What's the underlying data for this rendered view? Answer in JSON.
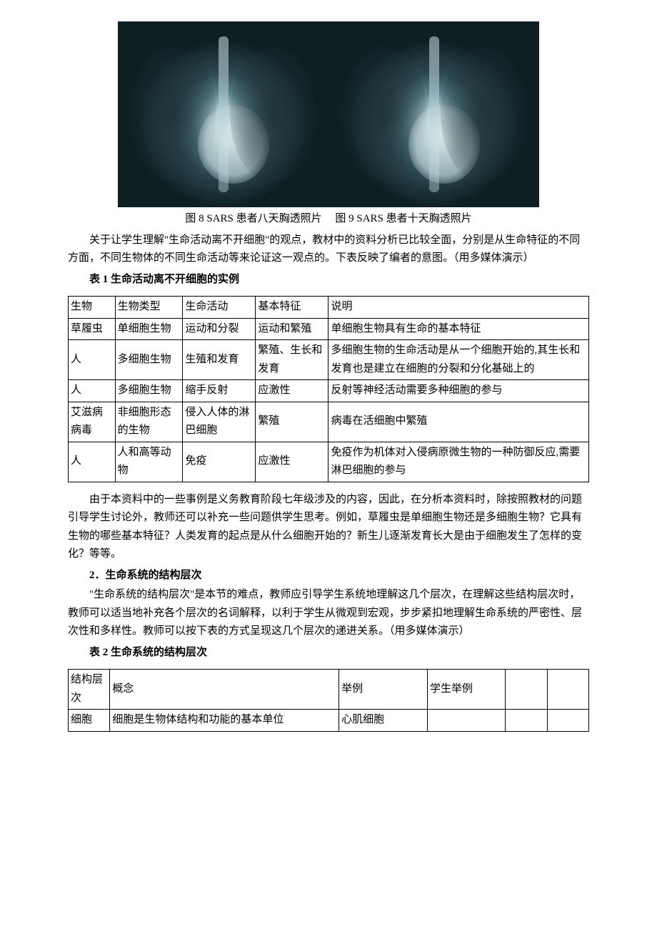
{
  "captions": {
    "fig8": "图 8 SARS 患者八天胸透照片",
    "fig9": "图 9 SARS 患者十天胸透照片"
  },
  "intro_para": "关于让学生理解\"生命活动离不开细胞\"的观点，教材中的资料分析已比较全面，分别是从生命特征的不同方面，不同生物体的不同生命活动等来论证这一观点的。下表反映了编者的意图。（用多媒体演示）",
  "table1": {
    "title": "表 1  生命活动离不开细胞的实例",
    "headers": [
      "生物",
      "生物类型",
      "生命活动",
      "基本特征",
      "说明"
    ],
    "col_widths_pct": [
      9,
      13,
      14,
      14,
      50
    ],
    "rows": [
      [
        "草履虫",
        "单细胞生物",
        "运动和分裂",
        "运动和繁殖",
        "单细胞生物具有生命的基本特征"
      ],
      [
        "人",
        "多细胞生物",
        "生殖和发育",
        "繁殖、生长和发育",
        "多细胞生物的生命活动是从一个细胞开始的,其生长和发育也是建立在细胞的分裂和分化基础上的"
      ],
      [
        "人",
        "多细胞生物",
        "缩手反射",
        "应激性",
        "反射等神经活动需要多种细胞的参与"
      ],
      [
        "艾滋病病毒",
        "非细胞形态的生物",
        "侵入人体的淋巴细胞",
        "繁殖",
        "病毒在活细胞中繁殖"
      ],
      [
        "人",
        "人和高等动物",
        "免疫",
        "应激性",
        "免疫作为机体对入侵病原微生物的一种防御反应,需要淋巴细胞的参与"
      ]
    ]
  },
  "after_table1_para": "由于本资料中的一些事例是义务教育阶段七年级涉及的内容，因此，在分析本资料时，除按照教材的问题引导学生讨论外，教师还可以补充一些问题供学生思考。例如，草履虫是单细胞生物还是多细胞生物？它具有生物的哪些基本特征？人类发育的起点是从什么细胞开始的？新生儿逐渐发育长大是由于细胞发生了怎样的变化？等等。",
  "section2": {
    "heading": "2．生命系统的结构层次",
    "para": "\"生命系统的结构层次\"是本节的难点，教师应引导学生系统地理解这几个层次，在理解这些结构层次时，教师可以适当地补充各个层次的名词解释，以利于学生从微观到宏观，步步紧扣地理解生命系统的严密性、层次性和多样性。教师可以按下表的方式呈现这几个层次的递进关系。（用多媒体演示）"
  },
  "table2": {
    "title": "表 2  生命系统的结构层次",
    "headers": [
      "结构层次",
      "概念",
      "举例",
      "学生举例",
      "",
      ""
    ],
    "col_widths_pct": [
      8,
      44,
      17,
      15,
      8,
      8
    ],
    "rows": [
      [
        "细胞",
        "细胞是生物体结构和功能的基本单位",
        "心肌细胞",
        "",
        "",
        ""
      ]
    ]
  }
}
